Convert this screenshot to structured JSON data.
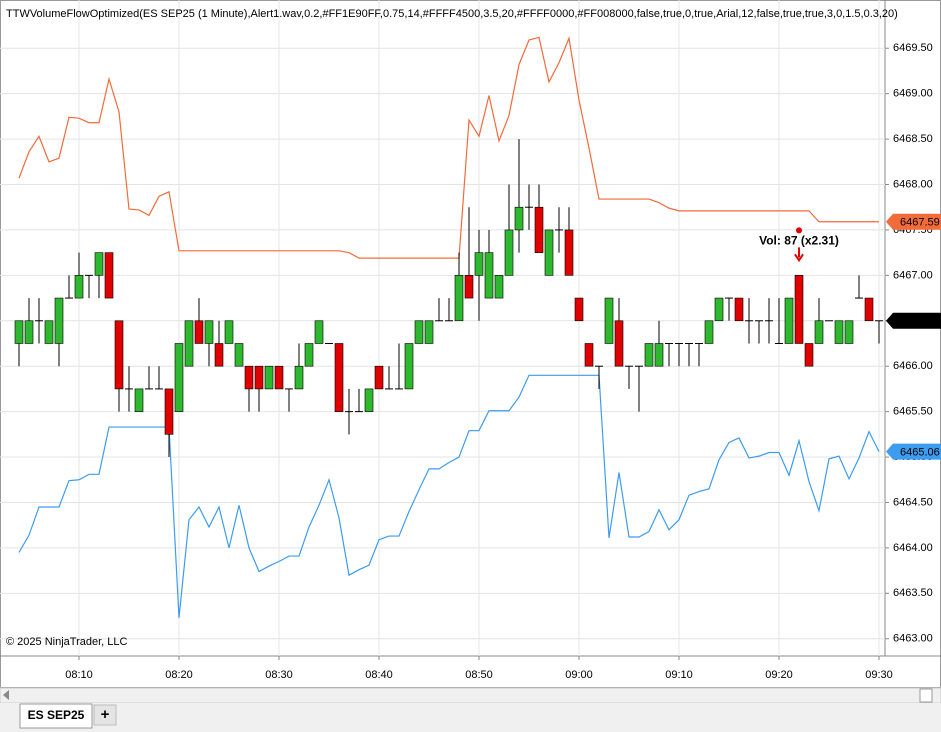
{
  "chart_data": {
    "type": "candlestick",
    "title": "TTWVolumeFlowOptimized(ES SEP25 (1 Minute),Alert1.wav,0.2,#FF1E90FF,0.75,14,#FFFF4500,3.5,20,#FFFF0000,#FF008000,false,true,0,true,Arial,12,false,true,true,3,0,1.5,0.3,20)",
    "copyright": "© 2025 NinjaTrader, LLC",
    "tab": "ES SEP25",
    "tab_add": "+",
    "x": [
      "08:04",
      "08:05",
      "08:06",
      "08:07",
      "08:08",
      "08:09",
      "08:10",
      "08:11",
      "08:12",
      "08:13",
      "08:14",
      "08:15",
      "08:16",
      "08:17",
      "08:18",
      "08:19",
      "08:20",
      "08:21",
      "08:22",
      "08:23",
      "08:24",
      "08:25",
      "08:26",
      "08:27",
      "08:28",
      "08:29",
      "08:30",
      "08:31",
      "08:32",
      "08:33",
      "08:34",
      "08:35",
      "08:36",
      "08:37",
      "08:38",
      "08:39",
      "08:40",
      "08:41",
      "08:42",
      "08:43",
      "08:44",
      "08:45",
      "08:46",
      "08:47",
      "08:48",
      "08:49",
      "08:50",
      "08:51",
      "08:52",
      "08:53",
      "08:54",
      "08:55",
      "08:56",
      "08:57",
      "08:58",
      "08:59",
      "09:00",
      "09:01",
      "09:02",
      "09:03",
      "09:04",
      "09:05",
      "09:06",
      "09:07",
      "09:08",
      "09:09",
      "09:10",
      "09:11",
      "09:12",
      "09:13",
      "09:14",
      "09:15",
      "09:16",
      "09:17",
      "09:18",
      "09:19",
      "09:20",
      "09:21",
      "09:22",
      "09:23",
      "09:24",
      "09:25",
      "09:26",
      "09:27",
      "09:28",
      "09:29",
      "09:30"
    ],
    "ohlc": [
      [
        6466.25,
        6466.5,
        6466.0,
        6466.5
      ],
      [
        6466.25,
        6466.75,
        6466.25,
        6466.5
      ],
      [
        6466.5,
        6466.75,
        6466.25,
        6466.5
      ],
      [
        6466.25,
        6466.5,
        6466.25,
        6466.5
      ],
      [
        6466.25,
        6466.75,
        6466.0,
        6466.75
      ],
      [
        6466.75,
        6467.0,
        6466.75,
        6466.75
      ],
      [
        6466.75,
        6467.25,
        6466.75,
        6467.0
      ],
      [
        6467.0,
        6467.0,
        6466.75,
        6467.0
      ],
      [
        6467.0,
        6467.25,
        6466.75,
        6467.25
      ],
      [
        6467.25,
        6467.25,
        6466.75,
        6466.75
      ],
      [
        6466.5,
        6466.5,
        6465.5,
        6465.75
      ],
      [
        6465.75,
        6466.0,
        6465.5,
        6465.75
      ],
      [
        6465.5,
        6465.75,
        6465.5,
        6465.75
      ],
      [
        6465.75,
        6466.0,
        6465.75,
        6465.75
      ],
      [
        6465.75,
        6466.0,
        6465.75,
        6465.75
      ],
      [
        6465.75,
        6465.75,
        6465.0,
        6465.25
      ],
      [
        6465.5,
        6466.25,
        6465.5,
        6466.25
      ],
      [
        6466.0,
        6466.5,
        6466.0,
        6466.5
      ],
      [
        6466.5,
        6466.75,
        6466.25,
        6466.25
      ],
      [
        6466.25,
        6466.5,
        6466.0,
        6466.5
      ],
      [
        6466.25,
        6466.5,
        6466.0,
        6466.0
      ],
      [
        6466.25,
        6466.5,
        6466.25,
        6466.5
      ],
      [
        6466.0,
        6466.25,
        6466.0,
        6466.25
      ],
      [
        6466.0,
        6466.0,
        6465.5,
        6465.75
      ],
      [
        6466.0,
        6466.0,
        6465.5,
        6465.75
      ],
      [
        6465.75,
        6466.0,
        6465.75,
        6466.0
      ],
      [
        6466.0,
        6466.0,
        6465.75,
        6465.75
      ],
      [
        6465.75,
        6465.75,
        6465.5,
        6465.75
      ],
      [
        6465.75,
        6466.25,
        6465.75,
        6466.0
      ],
      [
        6466.0,
        6466.25,
        6466.0,
        6466.25
      ],
      [
        6466.25,
        6466.5,
        6466.25,
        6466.5
      ],
      [
        6466.25,
        6466.25,
        6466.25,
        6466.25
      ],
      [
        6466.25,
        6466.25,
        6465.5,
        6465.5
      ],
      [
        6465.5,
        6465.75,
        6465.25,
        6465.5
      ],
      [
        6465.5,
        6465.75,
        6465.5,
        6465.5
      ],
      [
        6465.5,
        6465.75,
        6465.5,
        6465.75
      ],
      [
        6466.0,
        6466.0,
        6465.75,
        6465.75
      ],
      [
        6465.75,
        6466.0,
        6465.75,
        6465.75
      ],
      [
        6465.75,
        6466.25,
        6465.75,
        6465.75
      ],
      [
        6465.75,
        6466.25,
        6465.75,
        6466.25
      ],
      [
        6466.25,
        6466.5,
        6466.25,
        6466.5
      ],
      [
        6466.25,
        6466.5,
        6466.25,
        6466.5
      ],
      [
        6466.5,
        6466.75,
        6466.5,
        6466.5
      ],
      [
        6466.5,
        6466.75,
        6466.5,
        6466.5
      ],
      [
        6466.5,
        6467.25,
        6466.5,
        6467.0
      ],
      [
        6467.0,
        6467.75,
        6466.75,
        6466.75
      ],
      [
        6467.0,
        6467.5,
        6466.5,
        6467.25
      ],
      [
        6466.75,
        6467.5,
        6466.75,
        6467.25
      ],
      [
        6466.75,
        6467.0,
        6466.75,
        6467.0
      ],
      [
        6467.0,
        6468.0,
        6467.0,
        6467.5
      ],
      [
        6467.5,
        6468.5,
        6467.25,
        6467.75
      ],
      [
        6467.75,
        6468.0,
        6467.5,
        6467.75
      ],
      [
        6467.75,
        6468.0,
        6467.25,
        6467.25
      ],
      [
        6467.0,
        6467.5,
        6467.0,
        6467.5
      ],
      [
        6467.5,
        6467.75,
        6467.25,
        6467.5
      ],
      [
        6467.5,
        6467.75,
        6467.0,
        6467.0
      ],
      [
        6466.75,
        6466.75,
        6466.5,
        6466.5
      ],
      [
        6466.25,
        6466.25,
        6466.0,
        6466.0
      ],
      [
        6466.0,
        6466.0,
        6465.75,
        6466.0
      ],
      [
        6466.25,
        6466.75,
        6466.25,
        6466.75
      ],
      [
        6466.5,
        6466.75,
        6466.0,
        6466.0
      ],
      [
        6466.0,
        6466.0,
        6465.75,
        6466.0
      ],
      [
        6466.0,
        6466.0,
        6465.5,
        6466.0
      ],
      [
        6466.0,
        6466.25,
        6466.0,
        6466.25
      ],
      [
        6466.0,
        6466.5,
        6466.0,
        6466.25
      ],
      [
        6466.25,
        6466.25,
        6466.0,
        6466.25
      ],
      [
        6466.25,
        6466.25,
        6466.0,
        6466.25
      ],
      [
        6466.25,
        6466.25,
        6466.0,
        6466.25
      ],
      [
        6466.25,
        6466.25,
        6466.0,
        6466.25
      ],
      [
        6466.25,
        6466.5,
        6466.25,
        6466.5
      ],
      [
        6466.5,
        6466.75,
        6466.5,
        6466.75
      ],
      [
        6466.75,
        6466.75,
        6466.5,
        6466.75
      ],
      [
        6466.75,
        6466.75,
        6466.5,
        6466.5
      ],
      [
        6466.5,
        6466.75,
        6466.25,
        6466.5
      ],
      [
        6466.5,
        6466.5,
        6466.25,
        6466.5
      ],
      [
        6466.5,
        6466.75,
        6466.25,
        6466.5
      ],
      [
        6466.25,
        6466.75,
        6466.25,
        6466.25
      ],
      [
        6466.25,
        6466.75,
        6466.25,
        6466.75
      ],
      [
        6467.0,
        6467.0,
        6466.25,
        6466.25
      ],
      [
        6466.25,
        6466.25,
        6466.0,
        6466.0
      ],
      [
        6466.25,
        6466.75,
        6466.25,
        6466.5
      ],
      [
        6466.5,
        6466.5,
        6466.5,
        6466.5
      ],
      [
        6466.25,
        6466.5,
        6466.25,
        6466.5
      ],
      [
        6466.25,
        6466.5,
        6466.25,
        6466.5
      ],
      [
        6466.75,
        6467.0,
        6466.75,
        6466.75
      ],
      [
        6466.75,
        6466.75,
        6466.5,
        6466.5
      ],
      [
        6466.5,
        6466.5,
        6466.25,
        6466.5
      ]
    ],
    "up_color": "#2eb82e",
    "down_color": "#e00000",
    "doji_color": "#000000",
    "last_label": "6466.50",
    "series": [
      {
        "color": "#f26b3a",
        "last_label": "6467.59",
        "values": [
          6468.07,
          6468.36,
          6468.53,
          6468.25,
          6468.29,
          6468.74,
          6468.73,
          6468.68,
          6468.68,
          6469.16,
          6468.8,
          6467.73,
          6467.72,
          6467.66,
          6467.87,
          6467.92,
          6467.27,
          6467.27,
          6467.27,
          6467.27,
          6467.27,
          6467.27,
          6467.27,
          6467.27,
          6467.27,
          6467.27,
          6467.27,
          6467.27,
          6467.27,
          6467.27,
          6467.27,
          6467.27,
          6467.27,
          6467.25,
          6467.19,
          6467.19,
          6467.19,
          6467.19,
          6467.19,
          6467.19,
          6467.19,
          6467.19,
          6467.19,
          6467.19,
          6467.19,
          6468.71,
          6468.53,
          6468.98,
          6468.48,
          6468.76,
          6469.32,
          6469.59,
          6469.62,
          6469.13,
          6469.34,
          6469.61,
          6468.93,
          6468.4,
          6467.84,
          6467.84,
          6467.84,
          6467.84,
          6467.84,
          6467.84,
          6467.8,
          6467.74,
          6467.71,
          6467.71,
          6467.71,
          6467.71,
          6467.71,
          6467.71,
          6467.71,
          6467.71,
          6467.71,
          6467.71,
          6467.71,
          6467.71,
          6467.71,
          6467.71,
          6467.59,
          6467.59,
          6467.59,
          6467.59,
          6467.59,
          6467.59,
          6467.59
        ]
      },
      {
        "color": "#3d9cf0",
        "last_label": "6465.06",
        "values": [
          6463.95,
          6464.14,
          6464.45,
          6464.45,
          6464.45,
          6464.74,
          6464.75,
          6464.81,
          6464.81,
          6465.33,
          6465.33,
          6465.33,
          6465.33,
          6465.33,
          6465.33,
          6465.33,
          6463.23,
          6464.31,
          6464.45,
          6464.23,
          6464.45,
          6464.0,
          6464.47,
          6464.0,
          6463.74,
          6463.8,
          6463.85,
          6463.91,
          6463.91,
          6464.23,
          6464.47,
          6464.75,
          6464.33,
          6463.7,
          6463.76,
          6463.81,
          6464.09,
          6464.13,
          6464.13,
          6464.4,
          6464.64,
          6464.87,
          6464.87,
          6464.94,
          6465.0,
          6465.29,
          6465.29,
          6465.51,
          6465.51,
          6465.51,
          6465.66,
          6465.9,
          6465.9,
          6465.9,
          6465.9,
          6465.9,
          6465.9,
          6465.9,
          6465.9,
          6464.11,
          6464.83,
          6464.12,
          6464.12,
          6464.18,
          6464.42,
          6464.2,
          6464.31,
          6464.58,
          6464.62,
          6464.65,
          6464.97,
          6465.16,
          6465.21,
          6464.99,
          6465.01,
          6465.05,
          6465.05,
          6464.8,
          6465.18,
          6464.73,
          6464.41,
          6464.98,
          6465.01,
          6464.76,
          6464.99,
          6465.28,
          6465.06
        ]
      }
    ],
    "alert": {
      "text": "Vol: 87  (x2.31)",
      "x": "09:22",
      "color": "#e00000"
    },
    "ylim": [
      6462.81,
      6470.02
    ],
    "yticks": [
      {
        "value": 6463,
        "label": "6463.00"
      },
      {
        "value": 6463.5,
        "label": "6463.50"
      },
      {
        "value": 6464,
        "label": "6464.00"
      },
      {
        "value": 6464.5,
        "label": "6464.50"
      },
      {
        "value": 6465,
        "label": "6465.00"
      },
      {
        "value": 6465.5,
        "label": "6465.50"
      },
      {
        "value": 6466,
        "label": "6466.00"
      },
      {
        "value": 6466.5,
        "label": "6466.50"
      },
      {
        "value": 6467,
        "label": "6467.00"
      },
      {
        "value": 6467.5,
        "label": "6467.50"
      },
      {
        "value": 6468,
        "label": "6468.00"
      },
      {
        "value": 6468.5,
        "label": "6468.50"
      },
      {
        "value": 6469,
        "label": "6469.00"
      },
      {
        "value": 6469.5,
        "label": "6469.50"
      }
    ],
    "xticks": [
      "08:10",
      "08:20",
      "08:30",
      "08:40",
      "08:50",
      "09:00",
      "09:10",
      "09:20",
      "09:30"
    ],
    "grid": true
  }
}
